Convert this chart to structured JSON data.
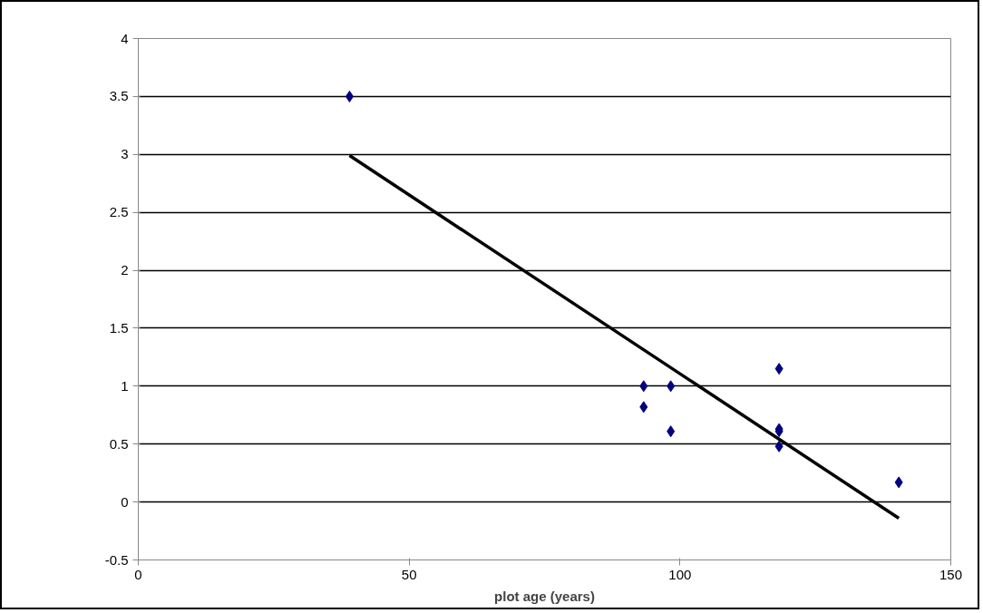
{
  "chart_data": {
    "type": "scatter",
    "xlabel": "plot age (years)",
    "xlim": [
      0,
      150
    ],
    "xticks": [
      0,
      50,
      100,
      150
    ],
    "ylim": [
      -0.5,
      4
    ],
    "yticks": [
      -0.5,
      0,
      0.5,
      1,
      1.5,
      2,
      2.5,
      3,
      3.5,
      4
    ],
    "grid": "y",
    "series": [
      {
        "marker": "diamond",
        "color": "#000080",
        "x": [
          39,
          93.3,
          93.3,
          98.3,
          98.3,
          118.3,
          118.3,
          118.3,
          118.3,
          140.4
        ],
        "values": [
          3.5,
          1.0,
          0.82,
          1.0,
          0.61,
          1.15,
          0.63,
          0.61,
          0.48,
          0.17
        ]
      },
      {
        "type": "line",
        "marker": "none",
        "color": "#000000",
        "x": [
          39,
          140.4
        ],
        "values": [
          2.99,
          -0.14
        ]
      }
    ]
  }
}
